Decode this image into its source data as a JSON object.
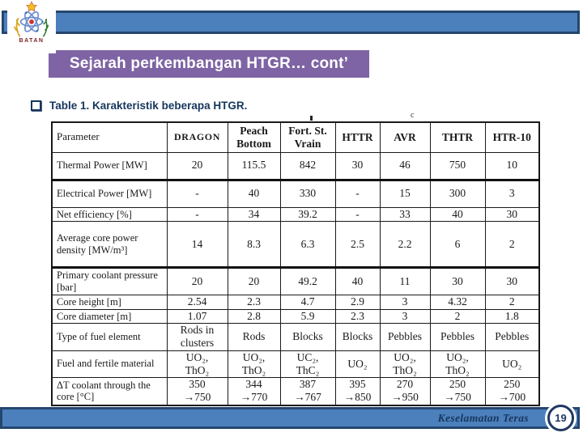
{
  "slide": {
    "logo": {
      "text": "BATAN"
    },
    "title": "Sejarah perkembangan HTGR… cont’",
    "caption": "Table 1. Karakteristik beberapa HTGR.",
    "footnote_mark": "c",
    "table": {
      "columns": [
        "Parameter",
        "DRAGON",
        "Peach Bottom",
        "Fort. St. Vrain",
        "HTTR",
        "AVR",
        "THTR",
        "HTR-10"
      ],
      "rows": [
        {
          "param": "Thermal Power [MW]",
          "values": [
            "20",
            "115.5",
            "842",
            "30",
            "46",
            "750",
            "10"
          ]
        },
        {
          "param": "Electrical Power [MW]",
          "values": [
            "-",
            "40",
            "330",
            "-",
            "15",
            "300",
            "3"
          ],
          "thick_top": true
        },
        {
          "param": "Net efficiency [%]",
          "values": [
            "-",
            "34",
            "39.2",
            "-",
            "33",
            "40",
            "30"
          ]
        },
        {
          "param": "Average core power density [MW/m³]",
          "values": [
            "14",
            "8.3",
            "6.3",
            "2.5",
            "2.2",
            "6",
            "2"
          ]
        },
        {
          "param": "Primary coolant pressure [bar]",
          "values": [
            "20",
            "20",
            "49.2",
            "40",
            "11",
            "30",
            "30"
          ],
          "thick_top": true
        },
        {
          "param": "Core height [m]",
          "values": [
            "2.54",
            "2.3",
            "4.7",
            "2.9",
            "3",
            "4.32",
            "2"
          ]
        },
        {
          "param": "Core diameter [m]",
          "values": [
            "1.07",
            "2.8",
            "5.9",
            "2.3",
            "3",
            "2",
            "1.8"
          ]
        },
        {
          "param": "Type of fuel element",
          "values": [
            "Rods in clusters",
            "Rods",
            "Blocks",
            "Blocks",
            "Pebbles",
            "Pebbles",
            "Pebbles"
          ]
        },
        {
          "param": "Fuel and fertile material",
          "values": [
            "UO₂,\nThO₂",
            "UO₂,\nThO₂",
            "UC₂,\nThC₂",
            "UO₂",
            "UO₂,\nThO₂",
            "UO₂,\nThO₂",
            "UO₂"
          ]
        },
        {
          "param": "ΔT coolant through the core [°C]",
          "values": [
            "350\n→750",
            "344\n→770",
            "387\n→767",
            "395\n→850",
            "270\n→950",
            "250\n→750",
            "250\n→700"
          ]
        }
      ]
    },
    "footer": {
      "label": "Keselamatan Teras",
      "page": "19"
    }
  },
  "colors": {
    "bar_blue": "#4C80BD",
    "bar_border": "#24466E",
    "title_purple": "#7E64A4",
    "navy_text": "#16365C"
  }
}
